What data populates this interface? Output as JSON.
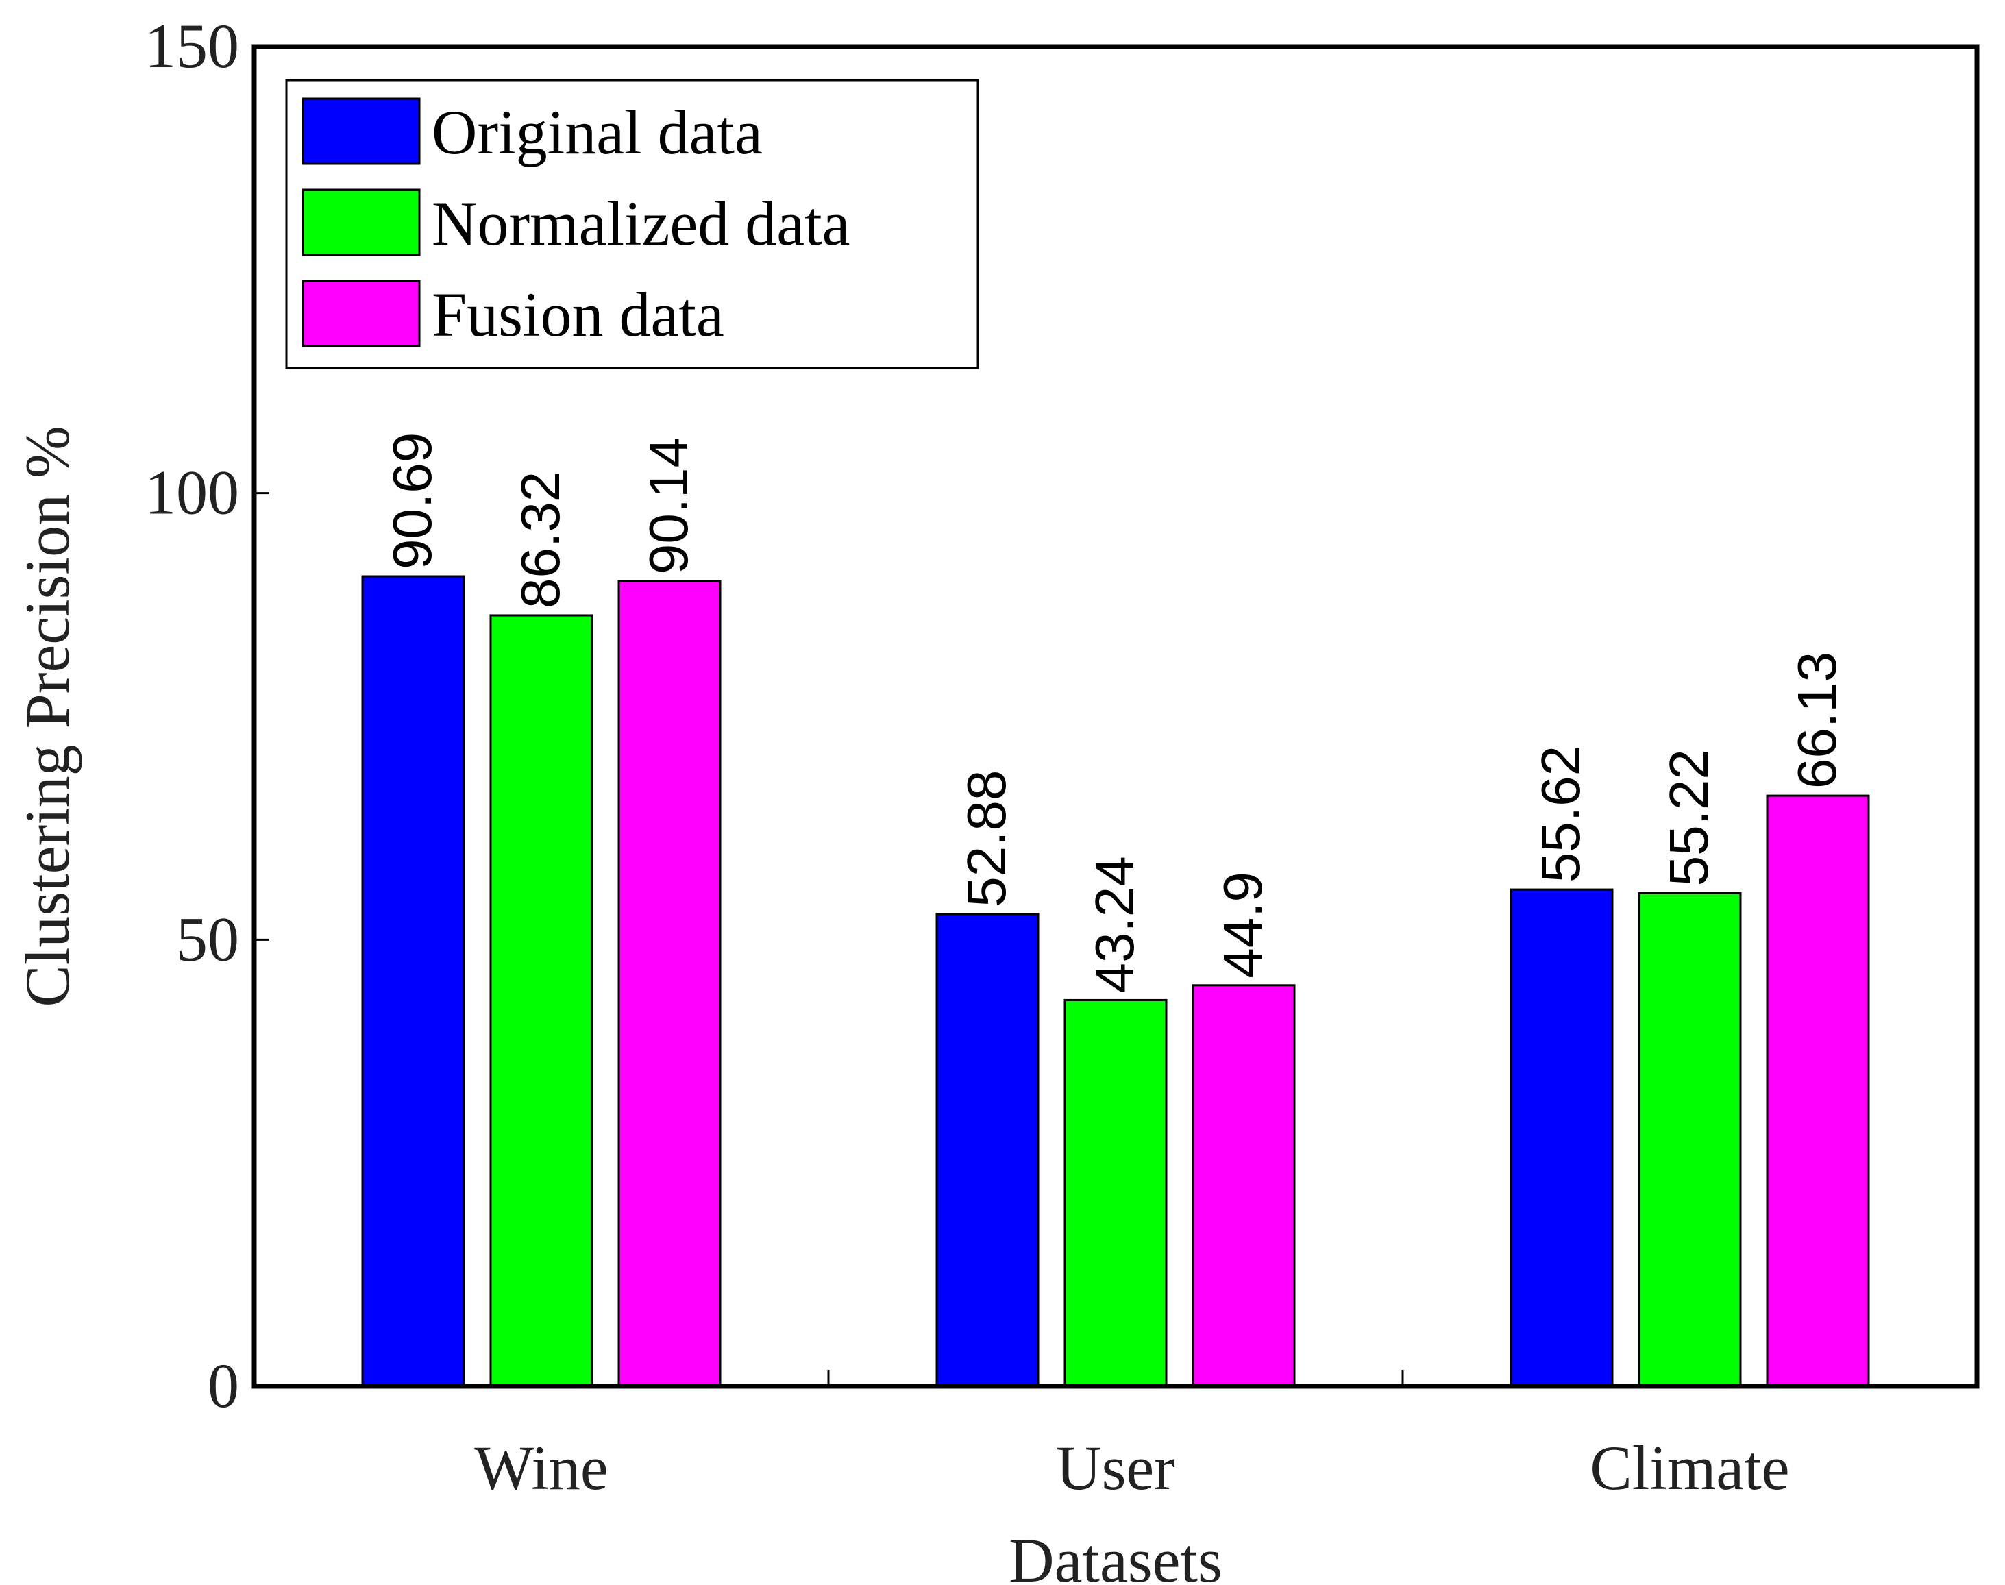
{
  "chart_data": {
    "type": "bar",
    "title": "",
    "xlabel": "Datasets",
    "ylabel": "Clustering Precision %",
    "categories": [
      "Wine",
      "User",
      "Climate"
    ],
    "ylim": [
      0,
      150
    ],
    "yticks": [
      0,
      50,
      100,
      150
    ],
    "grid": false,
    "legend_position": "top-left",
    "series": [
      {
        "name": "Original data",
        "color": "#0000FF",
        "values": [
          90.69,
          52.88,
          55.62
        ],
        "labels": [
          "90.69",
          "52.88",
          "55.62"
        ]
      },
      {
        "name": "Normalized data",
        "color": "#00FF00",
        "values": [
          86.32,
          43.24,
          55.22
        ],
        "labels": [
          "86.32",
          "43.24",
          "55.22"
        ]
      },
      {
        "name": "Fusion data",
        "color": "#FF00FF",
        "values": [
          90.14,
          44.9,
          66.13
        ],
        "labels": [
          "90.14",
          "44.9",
          "66.13"
        ]
      }
    ]
  }
}
